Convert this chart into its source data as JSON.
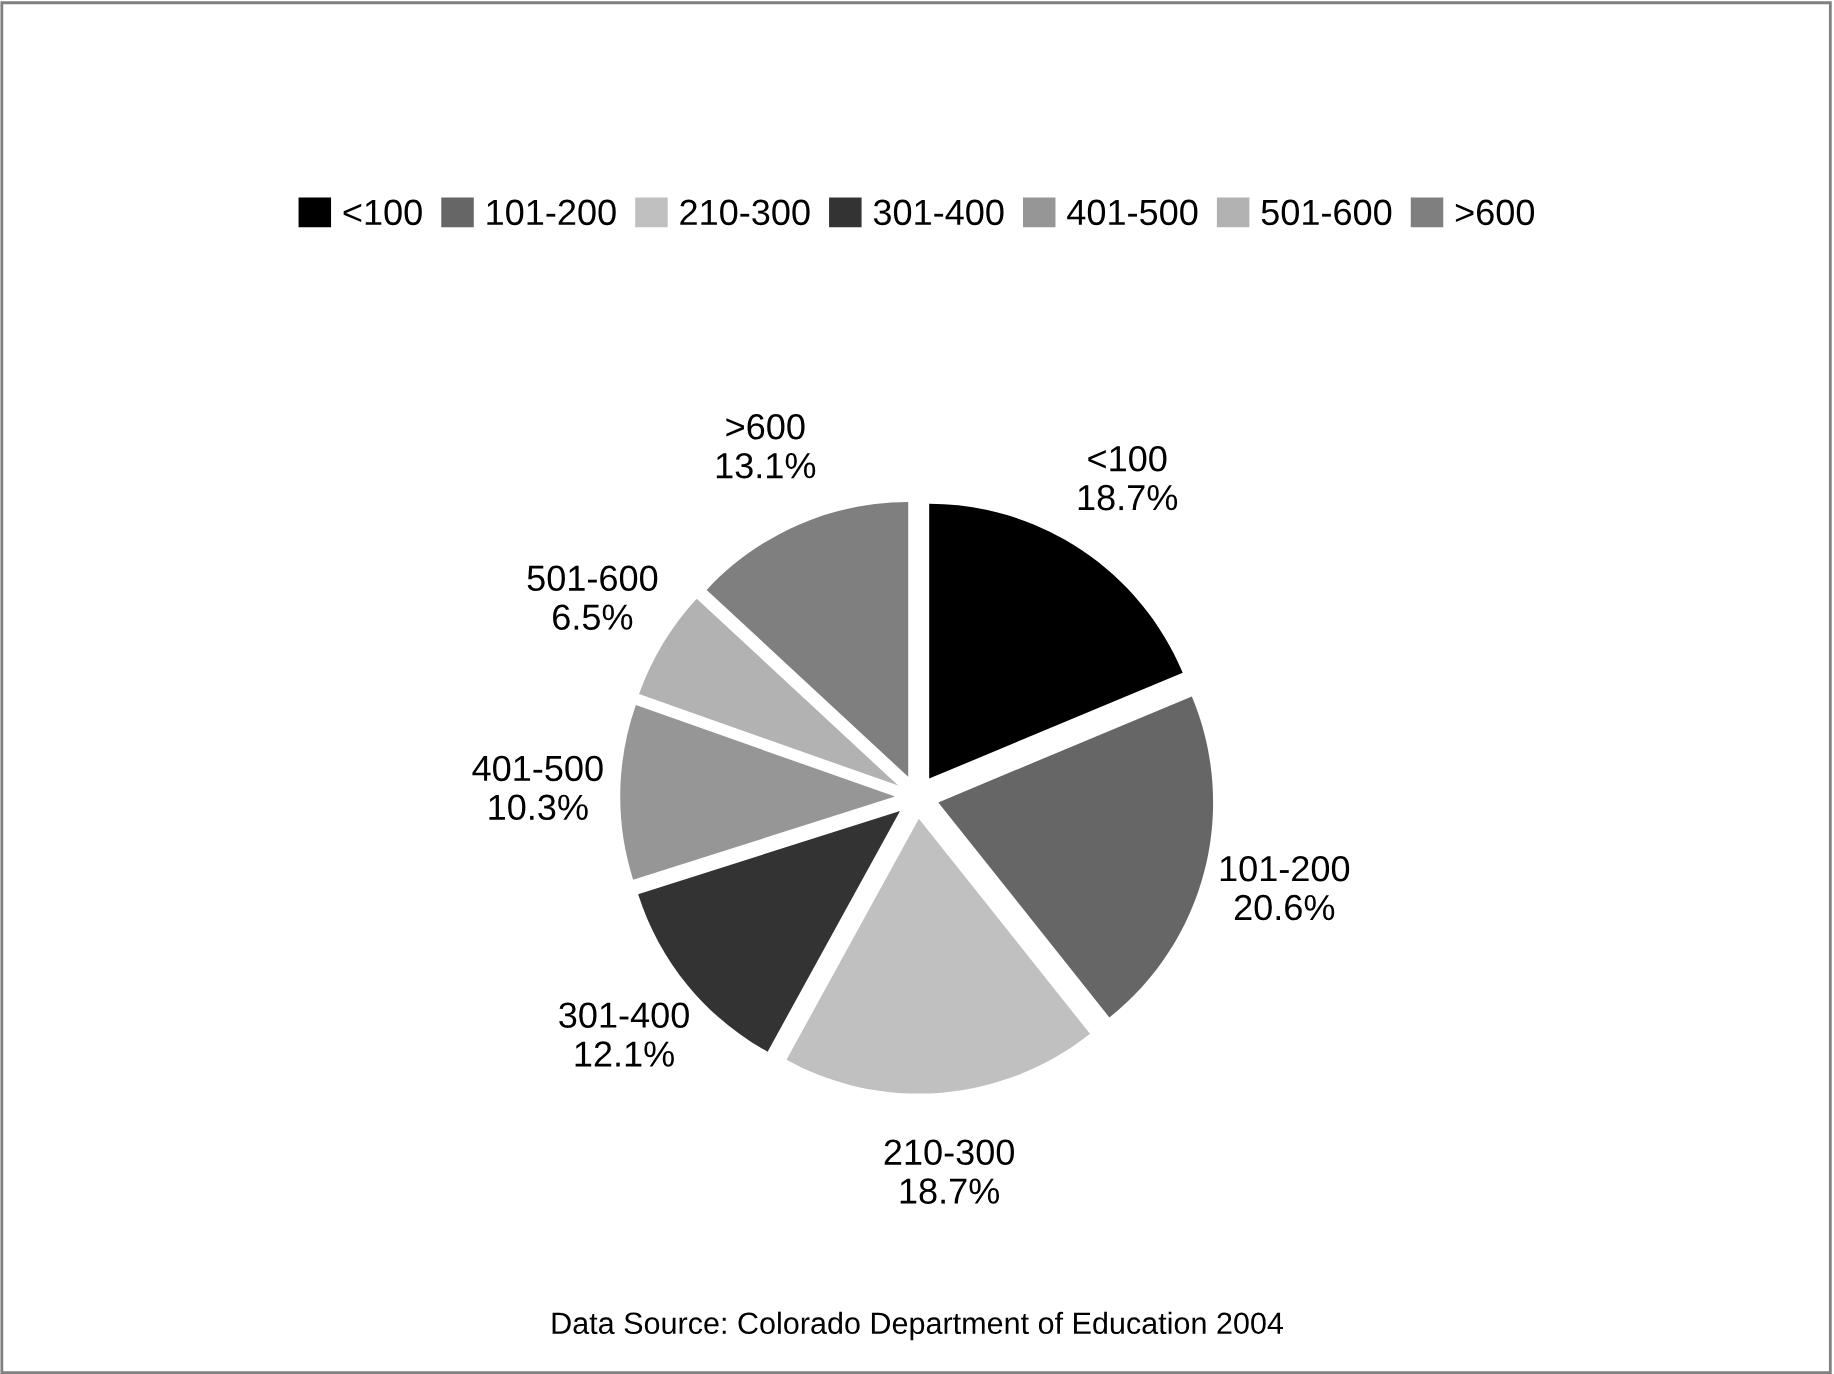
{
  "chart_data": {
    "type": "pie",
    "categories": [
      "<100",
      "101-200",
      "210-300",
      "301-400",
      "401-500",
      "501-600",
      ">600"
    ],
    "values": [
      18.7,
      20.6,
      18.7,
      12.1,
      10.3,
      6.5,
      13.1
    ],
    "value_labels": [
      "18.7%",
      "20.6%",
      "18.7%",
      "12.1%",
      "10.3%",
      "6.5%",
      "13.1%"
    ],
    "colors": [
      "#000000",
      "#666666",
      "#c0c0c0",
      "#333333",
      "#969696",
      "#b2b2b2",
      "#7f7f7f"
    ],
    "legend": "top",
    "annotations": [
      "Data Source: Colorado Department of Education 2004"
    ]
  }
}
